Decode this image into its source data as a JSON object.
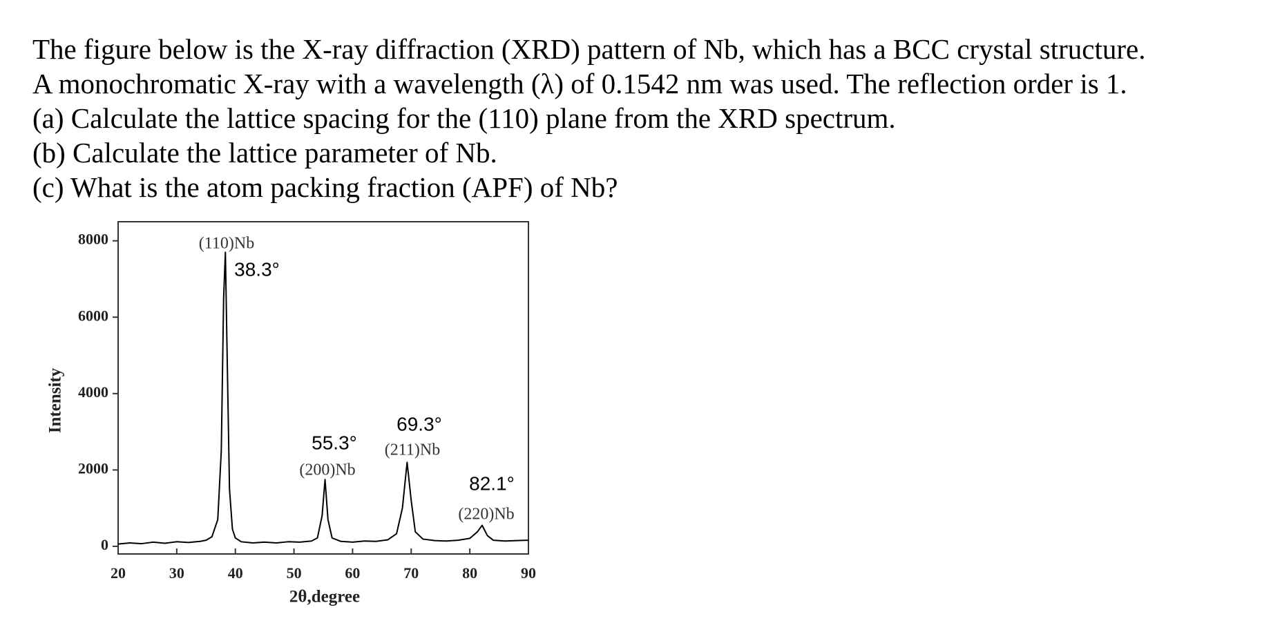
{
  "question": {
    "lines": [
      "The figure below is the X-ray diffraction (XRD) pattern of Nb, which has a BCC crystal structure.",
      "A monochromatic X-ray with a wavelength (λ) of 0.1542 nm was used. The reflection order is 1.",
      "(a) Calculate the lattice spacing for the (110) plane from the XRD spectrum.",
      "(b) Calculate the lattice parameter of Nb.",
      "(c) What is the atom packing fraction (APF) of Nb?"
    ]
  },
  "chart_data": {
    "type": "line",
    "x_label": "2θ,degree",
    "y_label": "Intensity",
    "x": [
      20,
      22,
      24,
      26,
      28,
      30,
      32,
      34,
      35,
      36,
      37,
      37.6,
      38,
      38.3,
      38.6,
      39,
      39.5,
      40,
      41,
      43,
      45,
      47,
      49,
      51,
      53,
      54,
      54.8,
      55.3,
      55.8,
      56.5,
      58,
      60,
      62,
      64,
      66,
      67.5,
      68.5,
      69.3,
      70,
      70.7,
      72,
      74,
      76,
      78,
      80,
      81.3,
      82.1,
      83,
      84,
      86,
      88,
      90
    ],
    "series": [
      {
        "color": "#000000",
        "values": [
          60,
          90,
          70,
          110,
          80,
          120,
          100,
          130,
          160,
          250,
          700,
          2500,
          6500,
          7700,
          5000,
          1500,
          450,
          220,
          120,
          90,
          110,
          90,
          120,
          110,
          140,
          220,
          800,
          1750,
          700,
          220,
          130,
          110,
          140,
          130,
          170,
          330,
          1000,
          2200,
          1200,
          380,
          190,
          150,
          140,
          160,
          210,
          380,
          550,
          280,
          160,
          140,
          150,
          160
        ]
      }
    ],
    "annotations": [
      "(110)Nb",
      "38.3°",
      "55.3°",
      "(200)Nb",
      "69.3°",
      "(211)Nb",
      "82.1°",
      "(220)Nb"
    ],
    "xlim": [
      20,
      90
    ],
    "xticks": [
      20,
      30,
      40,
      50,
      60,
      70,
      80,
      90
    ],
    "ylim": [
      -200,
      8500
    ],
    "yticks": [
      0,
      2000,
      4000,
      6000,
      8000
    ]
  }
}
